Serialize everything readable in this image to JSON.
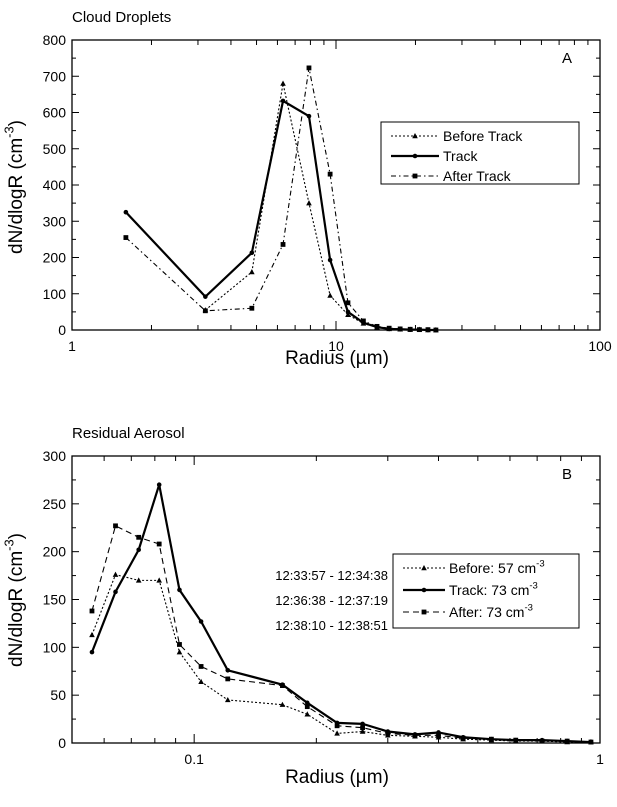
{
  "chart_data": [
    {
      "type": "line",
      "title": "Cloud Droplets",
      "panel_label": "A",
      "xlabel": "Radius (µm)",
      "ylabel": "dN/dlogR (cm⁻³)",
      "ylabel_parts": {
        "main": "dN/dlogR (cm",
        "sup": "-3",
        "close": ")"
      },
      "xscale": "log",
      "xlim": [
        1,
        100
      ],
      "ylim": [
        0,
        800
      ],
      "x_ticks": [
        1,
        10,
        100
      ],
      "x_tick_labels": [
        "1",
        "10",
        "100"
      ],
      "y_ticks": [
        0,
        100,
        200,
        300,
        400,
        500,
        600,
        700,
        800
      ],
      "y_tick_labels": [
        "0",
        "100",
        "200",
        "300",
        "400",
        "500",
        "600",
        "700",
        "800"
      ],
      "grid": false,
      "legend_position": "right",
      "series": [
        {
          "name": "Before Track",
          "style": "dotted",
          "marker": "triangle",
          "x": [
            1.6,
            3.2,
            4.8,
            6.3,
            7.9,
            9.5,
            11.1,
            12.7,
            14.3,
            15.9,
            17.5,
            19.1,
            20.7,
            22.3,
            23.9
          ],
          "y": [
            null,
            55,
            160,
            680,
            350,
            95,
            42,
            18,
            7,
            3,
            2,
            1,
            1,
            0,
            0
          ]
        },
        {
          "name": "Track",
          "style": "solid",
          "marker": "circle",
          "x": [
            1.6,
            3.2,
            4.8,
            6.3,
            7.9,
            9.5,
            11.1,
            12.7,
            14.3,
            15.9,
            17.5,
            19.1,
            20.7,
            22.3,
            23.9
          ],
          "y": [
            325,
            92,
            213,
            632,
            590,
            193,
            50,
            20,
            8,
            3,
            2,
            1,
            1,
            0,
            0
          ]
        },
        {
          "name": "After Track",
          "style": "dashdot",
          "marker": "square",
          "x": [
            1.6,
            3.2,
            4.8,
            6.3,
            7.9,
            9.5,
            11.1,
            12.7,
            14.3,
            15.9,
            17.5,
            19.1,
            20.7,
            22.3,
            23.9
          ],
          "y": [
            255,
            53,
            60,
            236,
            723,
            430,
            75,
            25,
            10,
            5,
            3,
            2,
            1,
            1,
            0
          ]
        }
      ]
    },
    {
      "type": "line",
      "title": "Residual Aerosol",
      "panel_label": "B",
      "xlabel": "Radius (µm)",
      "ylabel": "dN/dlogR (cm⁻³)",
      "ylabel_parts": {
        "main": "dN/dlogR (cm",
        "sup": "-3",
        "close": ")"
      },
      "xscale": "log",
      "xlim": [
        0.05,
        1
      ],
      "ylim": [
        0,
        300
      ],
      "x_ticks": [
        0.1,
        1
      ],
      "x_tick_labels": [
        "0.1",
        "1"
      ],
      "y_ticks": [
        0,
        50,
        100,
        150,
        200,
        250,
        300
      ],
      "y_tick_labels": [
        "0",
        "50",
        "100",
        "150",
        "200",
        "250",
        "300"
      ],
      "grid": false,
      "legend_position": "right",
      "time_ranges": [
        "12:33:57 - 12:34:38",
        "12:36:38 - 12:37:19",
        "12:38:10 - 12:38:51"
      ],
      "series": [
        {
          "name": "Before: 57 cm⁻³",
          "name_parts": {
            "main": "Before:  57  cm",
            "sup": "-3"
          },
          "style": "dotted",
          "marker": "triangle",
          "x": [
            0.056,
            0.064,
            0.073,
            0.082,
            0.092,
            0.104,
            0.121,
            0.165,
            0.19,
            0.225,
            0.26,
            0.3,
            0.35,
            0.4,
            0.46,
            0.54,
            0.62,
            0.72,
            0.83,
            0.95
          ],
          "y": [
            113,
            176,
            170,
            170,
            95,
            64,
            45,
            40,
            30,
            10,
            12,
            8,
            7,
            6,
            4,
            3,
            2,
            2,
            1,
            1
          ]
        },
        {
          "name": "Track: 73 cm⁻³",
          "name_parts": {
            "main": "Track:  73  cm",
            "sup": "-3"
          },
          "style": "solid",
          "marker": "circle",
          "x": [
            0.056,
            0.064,
            0.073,
            0.082,
            0.092,
            0.104,
            0.121,
            0.165,
            0.19,
            0.225,
            0.26,
            0.3,
            0.35,
            0.4,
            0.46,
            0.54,
            0.62,
            0.72,
            0.83,
            0.95
          ],
          "y": [
            95,
            158,
            202,
            270,
            160,
            127,
            76,
            61,
            42,
            21,
            20,
            12,
            9,
            11,
            6,
            4,
            3,
            3,
            2,
            1
          ]
        },
        {
          "name": "After: 73 cm⁻³",
          "name_parts": {
            "main": "After:  73  cm",
            "sup": "-3"
          },
          "style": "dashed",
          "marker": "square",
          "x": [
            0.056,
            0.064,
            0.073,
            0.082,
            0.092,
            0.104,
            0.121,
            0.165,
            0.19,
            0.225,
            0.26,
            0.3,
            0.35,
            0.4,
            0.46,
            0.54,
            0.62,
            0.72,
            0.83,
            0.95
          ],
          "y": [
            138,
            227,
            215,
            208,
            103,
            80,
            67,
            60,
            38,
            18,
            16,
            10,
            8,
            8,
            5,
            4,
            3,
            2,
            2,
            1
          ]
        }
      ]
    }
  ]
}
